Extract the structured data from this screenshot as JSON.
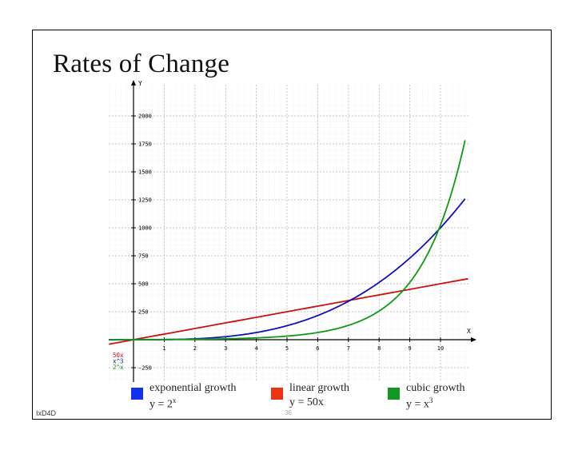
{
  "slide": {
    "title": "Rates of Change",
    "footer": "IxD4D",
    "page_number": "36"
  },
  "chart_data": {
    "type": "line",
    "xlabel": "X",
    "ylabel": "Y",
    "xlim": [
      -1,
      11
    ],
    "ylim": [
      -350,
      2250
    ],
    "x_ticks": [
      1,
      2,
      3,
      4,
      5,
      6,
      7,
      8,
      9,
      10
    ],
    "y_ticks": [
      -250,
      250,
      500,
      750,
      1000,
      1250,
      1500,
      1750,
      2000
    ],
    "grid": true,
    "mini_legend": [
      "50x",
      "x^3",
      "2^x"
    ],
    "series": [
      {
        "name": "50x",
        "color": "#cc1111",
        "function": "linear",
        "points": [
          [
            -1,
            -50
          ],
          [
            0,
            0
          ],
          [
            5,
            250
          ],
          [
            10,
            500
          ],
          [
            10.9,
            545
          ]
        ]
      },
      {
        "name": "x^3",
        "color": "#1111bb",
        "function": "cubic",
        "points": [
          [
            0,
            0
          ],
          [
            2,
            8
          ],
          [
            4,
            64
          ],
          [
            6,
            216
          ],
          [
            8,
            512
          ],
          [
            10,
            1000
          ],
          [
            10.8,
            1260
          ]
        ]
      },
      {
        "name": "2^x",
        "color": "#119911",
        "function": "exponential",
        "points": [
          [
            -1,
            0.5
          ],
          [
            0,
            1
          ],
          [
            4,
            16
          ],
          [
            6,
            64
          ],
          [
            8,
            256
          ],
          [
            10,
            1024
          ],
          [
            10.8,
            1783
          ]
        ]
      }
    ]
  },
  "legend": [
    {
      "name": "exponential growth",
      "equation": "y = 2",
      "sup": "x",
      "color": "#1133ee"
    },
    {
      "name": "linear growth",
      "equation": "y = 50x",
      "sup": "",
      "color": "#ee3311"
    },
    {
      "name": "cubic growth",
      "equation": "y = x",
      "sup": "3",
      "color": "#119922"
    }
  ]
}
